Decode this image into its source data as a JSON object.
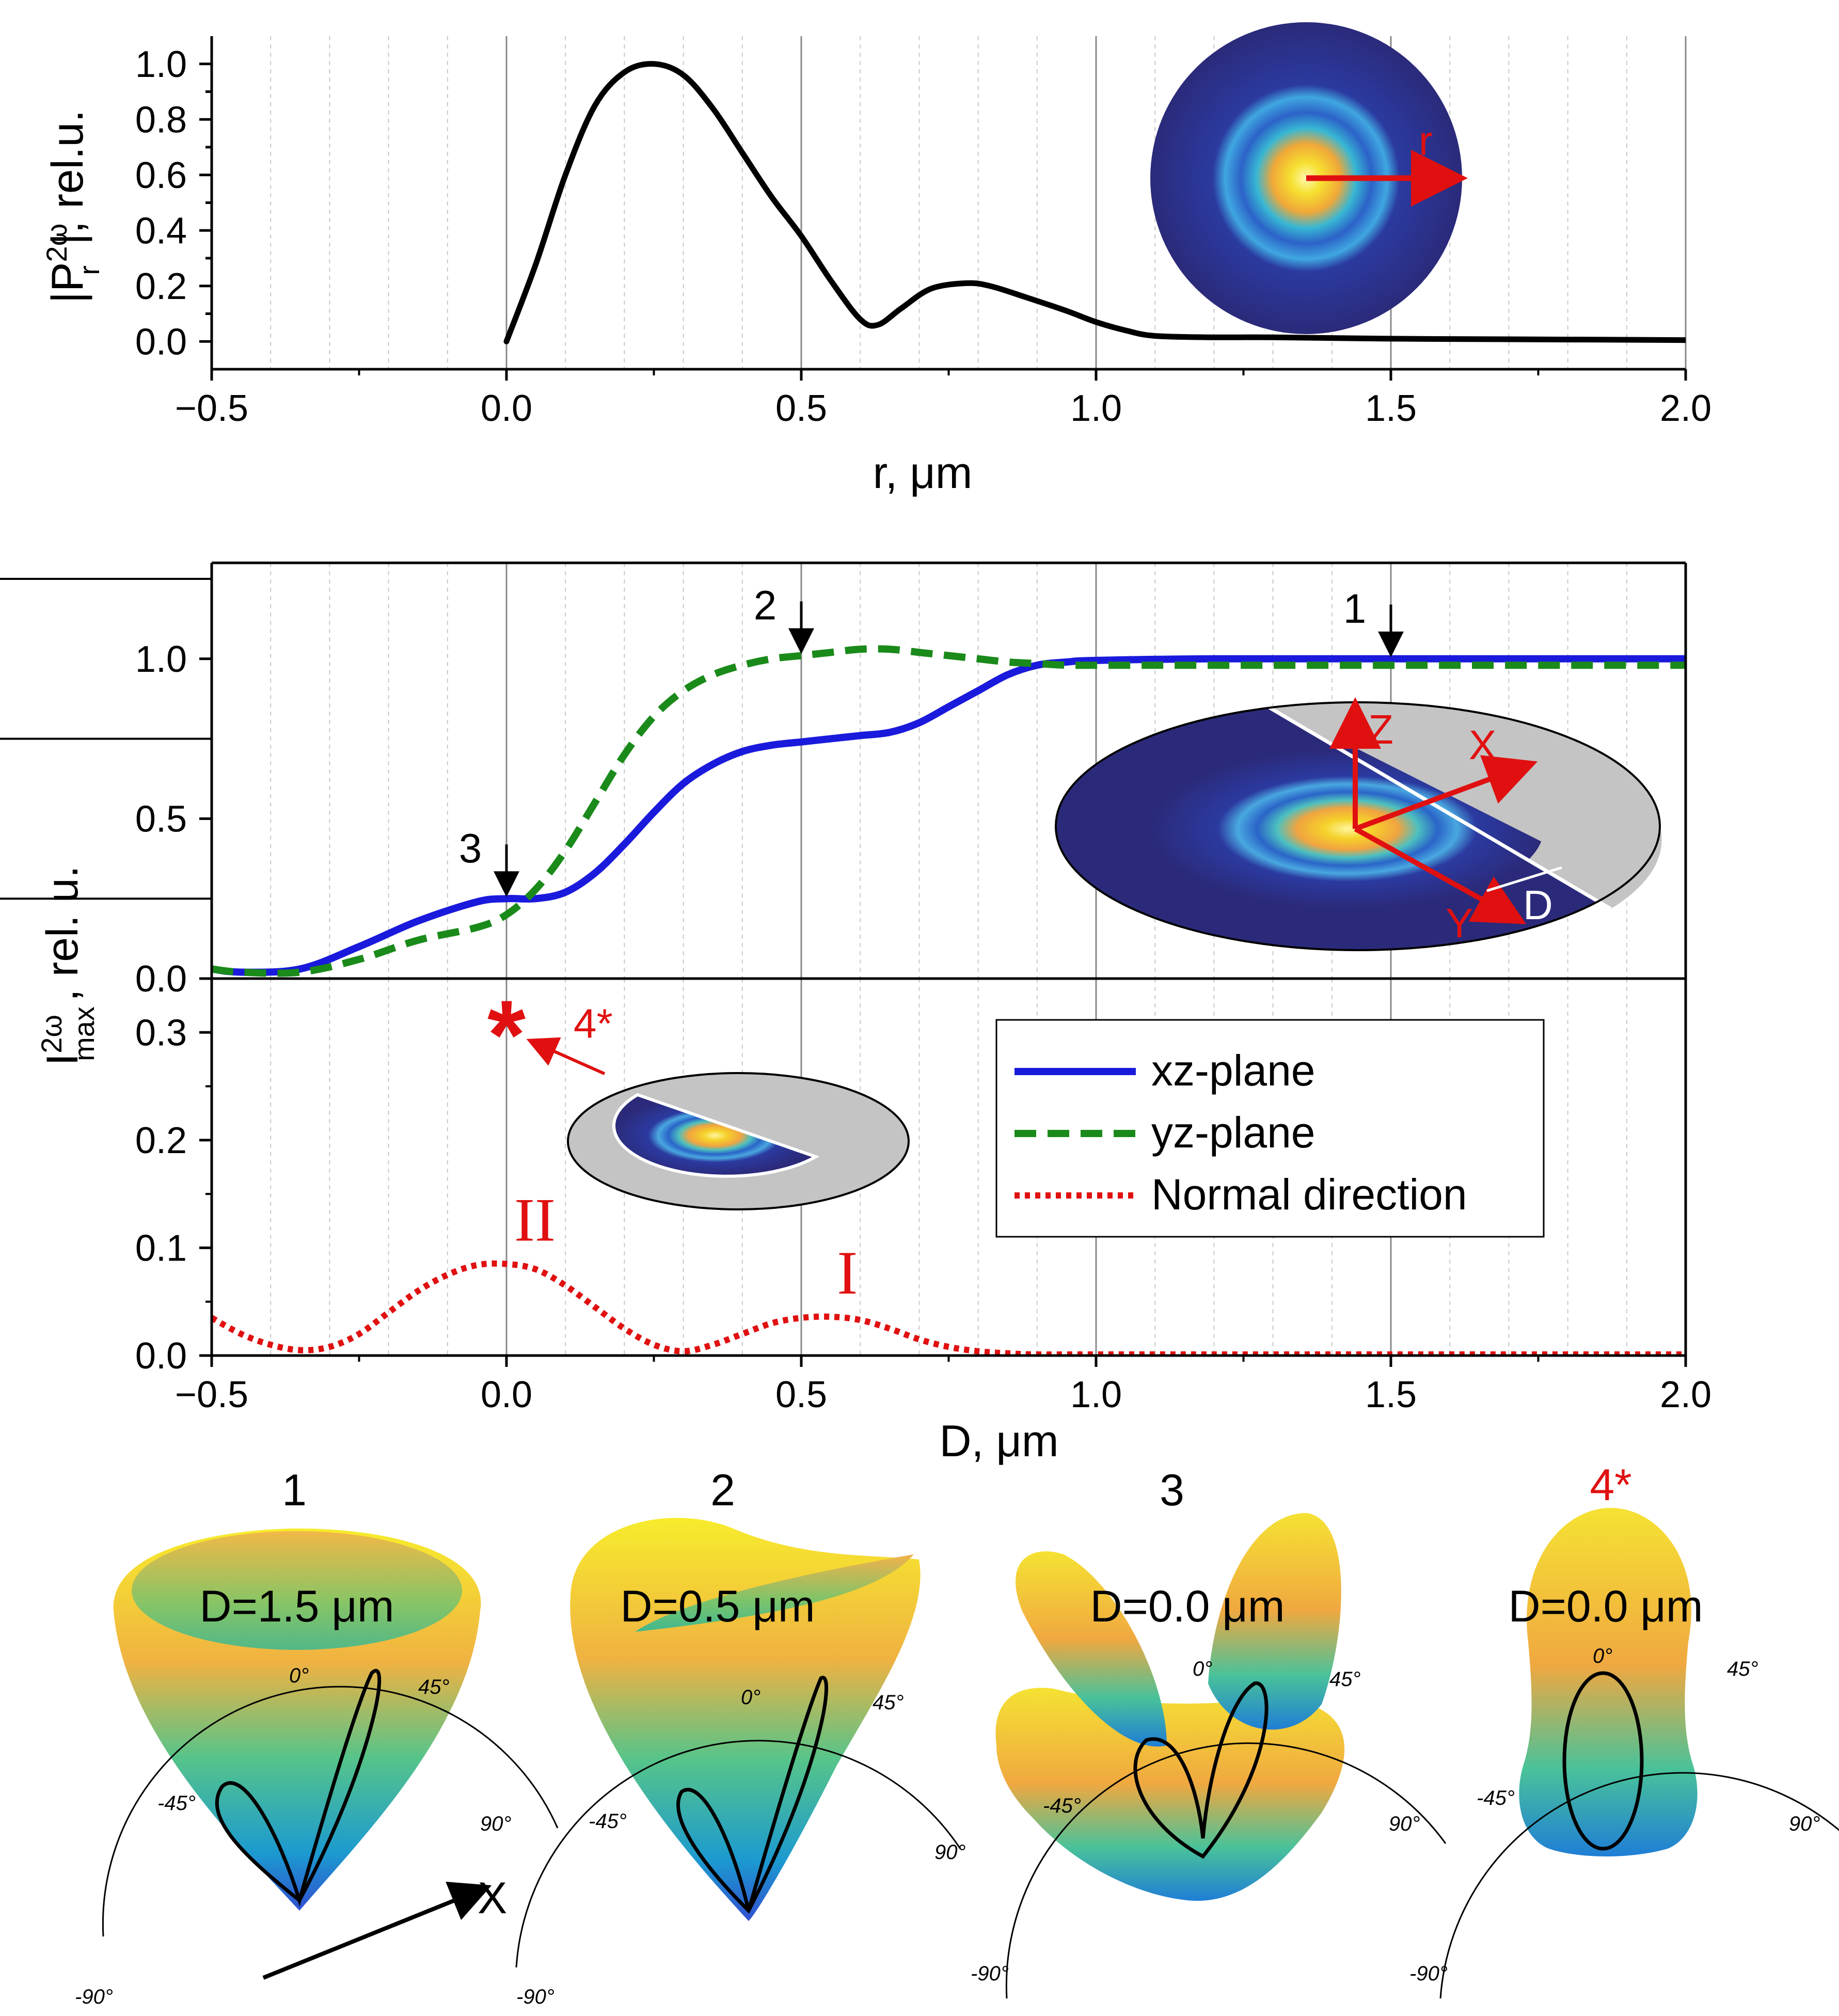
{
  "chart_data": [
    {
      "type": "line",
      "xlabel": "r, μm",
      "ylabel_main": "|P",
      "ylabel_sub": "r",
      "ylabel_sup": "2ω",
      "ylabel_tail": "|, rel.u.",
      "xlim": [
        -0.5,
        2.0
      ],
      "ylim": [
        -0.1,
        1.1
      ],
      "xticks": [
        "−0.5",
        "0.0",
        "0.5",
        "1.0",
        "1.5",
        "2.0"
      ],
      "xtick_values": [
        -0.5,
        0.0,
        0.5,
        1.0,
        1.5,
        2.0
      ],
      "yticks": [
        "0.0",
        "0.2",
        "0.4",
        "0.6",
        "0.8",
        "1.0"
      ],
      "ytick_minor": [
        "0.1",
        "0.3",
        "0.5",
        "0.7",
        "0.9"
      ],
      "ytick_values": [
        0.0,
        0.2,
        0.4,
        0.6,
        0.8,
        1.0
      ],
      "ytick_minor_values": [
        0.1,
        0.3,
        0.5,
        0.7,
        0.9
      ],
      "series": [
        {
          "name": "|P_r^2ω|",
          "color": "#000000",
          "x": [
            0.0,
            0.05,
            0.1,
            0.15,
            0.2,
            0.25,
            0.3,
            0.35,
            0.4,
            0.45,
            0.5,
            0.55,
            0.6,
            0.63,
            0.67,
            0.72,
            0.78,
            0.82,
            0.88,
            0.95,
            1.0,
            1.05,
            1.1,
            1.2,
            1.3,
            1.5,
            1.7,
            2.0
          ],
          "y": [
            0.0,
            0.28,
            0.6,
            0.85,
            0.97,
            1.0,
            0.96,
            0.84,
            0.68,
            0.52,
            0.38,
            0.22,
            0.08,
            0.06,
            0.12,
            0.19,
            0.21,
            0.2,
            0.16,
            0.11,
            0.07,
            0.04,
            0.02,
            0.015,
            0.015,
            0.01,
            0.008,
            0.005
          ]
        }
      ],
      "inset_label": "r"
    },
    {
      "type": "line",
      "xlim": [
        -0.5,
        2.0
      ],
      "ylim": [
        0.0,
        1.3
      ],
      "xticks": [],
      "yticks": [
        "0.0",
        "0.5",
        "1.0"
      ],
      "ytick_values": [
        0.0,
        0.5,
        1.0
      ],
      "series": [
        {
          "name": "xz-plane",
          "color": "#1a1adc",
          "x": [
            -0.5,
            -0.45,
            -0.35,
            -0.25,
            -0.15,
            -0.05,
            0.0,
            0.05,
            0.1,
            0.15,
            0.2,
            0.25,
            0.3,
            0.35,
            0.4,
            0.45,
            0.5,
            0.55,
            0.6,
            0.65,
            0.7,
            0.75,
            0.8,
            0.85,
            0.9,
            0.95,
            1.0,
            1.2,
            1.5,
            2.0
          ],
          "y": [
            0.03,
            0.02,
            0.03,
            0.1,
            0.18,
            0.24,
            0.25,
            0.25,
            0.27,
            0.33,
            0.42,
            0.52,
            0.61,
            0.67,
            0.71,
            0.73,
            0.74,
            0.75,
            0.76,
            0.77,
            0.8,
            0.85,
            0.9,
            0.95,
            0.98,
            0.99,
            0.995,
            1.0,
            1.0,
            1.0
          ]
        },
        {
          "name": "yz-plane",
          "color": "#1a8a1a",
          "x": [
            -0.5,
            -0.45,
            -0.35,
            -0.25,
            -0.15,
            -0.05,
            0.0,
            0.05,
            0.1,
            0.15,
            0.2,
            0.25,
            0.3,
            0.35,
            0.4,
            0.45,
            0.5,
            0.55,
            0.6,
            0.65,
            0.7,
            0.75,
            0.8,
            0.85,
            0.9,
            0.95,
            1.0,
            1.2,
            1.5,
            2.0
          ],
          "y": [
            0.03,
            0.02,
            0.02,
            0.06,
            0.12,
            0.16,
            0.2,
            0.28,
            0.4,
            0.55,
            0.7,
            0.82,
            0.9,
            0.95,
            0.98,
            1.0,
            1.01,
            1.02,
            1.03,
            1.03,
            1.02,
            1.01,
            1.0,
            0.99,
            0.985,
            0.98,
            0.98,
            0.98,
            0.98,
            0.98
          ]
        }
      ],
      "markers": [
        {
          "label": "1",
          "x": 1.5
        },
        {
          "label": "2",
          "x": 0.5
        },
        {
          "label": "3",
          "x": 0.0
        }
      ],
      "inset_axes": [
        "Z",
        "X",
        "Y",
        "D"
      ]
    },
    {
      "type": "line",
      "xlabel": "D, μm",
      "ylabel_main": "I",
      "ylabel_sub": "max",
      "ylabel_sup": "2ω",
      "ylabel_tail": ", rel. u.",
      "xlim": [
        -0.5,
        2.0
      ],
      "ylim": [
        0.0,
        0.35
      ],
      "xticks": [
        "−0.5",
        "0.0",
        "0.5",
        "1.0",
        "1.5",
        "2.0"
      ],
      "xtick_values": [
        -0.5,
        0.0,
        0.5,
        1.0,
        1.5,
        2.0
      ],
      "yticks": [
        "0.0",
        "0.1",
        "0.2",
        "0.3"
      ],
      "ytick_values": [
        0.0,
        0.1,
        0.2,
        0.3
      ],
      "series": [
        {
          "name": "Normal direction",
          "color": "#e01010",
          "x": [
            -0.5,
            -0.45,
            -0.4,
            -0.35,
            -0.3,
            -0.25,
            -0.2,
            -0.15,
            -0.1,
            -0.05,
            0.0,
            0.05,
            0.1,
            0.15,
            0.2,
            0.25,
            0.3,
            0.35,
            0.4,
            0.45,
            0.5,
            0.55,
            0.6,
            0.65,
            0.7,
            0.75,
            0.8,
            0.85,
            0.9,
            1.0,
            1.5,
            2.0
          ],
          "y": [
            0.035,
            0.02,
            0.01,
            0.005,
            0.008,
            0.02,
            0.04,
            0.06,
            0.075,
            0.084,
            0.085,
            0.08,
            0.065,
            0.045,
            0.025,
            0.01,
            0.004,
            0.01,
            0.02,
            0.03,
            0.035,
            0.036,
            0.033,
            0.025,
            0.015,
            0.008,
            0.004,
            0.002,
            0.001,
            0.001,
            0.001,
            0.001
          ]
        }
      ],
      "special_point": {
        "label": "4*",
        "x": 0.0,
        "y": 0.3
      },
      "peak_labels": [
        {
          "label": "II",
          "x": 0.0,
          "y": 0.085
        },
        {
          "label": "I",
          "x": 0.53,
          "y": 0.036
        }
      ]
    }
  ],
  "legend": {
    "items": [
      {
        "label": "xz-plane",
        "color": "#1a1adc",
        "style": "solid"
      },
      {
        "label": "yz-plane",
        "color": "#1a8a1a",
        "style": "dashed"
      },
      {
        "label": "Normal direction",
        "color": "#e01010",
        "style": "dotted"
      }
    ]
  },
  "bottom_panels": [
    {
      "number": "1",
      "d_label": "D=1.5 μm",
      "number_color": "#000000",
      "angles": [
        "0°",
        "45°",
        "90°",
        "-45°",
        "-90°"
      ],
      "x_axis": "X"
    },
    {
      "number": "2",
      "d_label": "D=0.5 μm",
      "number_color": "#000000",
      "angles": [
        "0°",
        "45°",
        "90°",
        "-45°",
        "-90°"
      ]
    },
    {
      "number": "3",
      "d_label": "D=0.0 μm",
      "number_color": "#000000",
      "angles": [
        "0°",
        "45°",
        "90°",
        "-45°",
        "-90°"
      ]
    },
    {
      "number": "4*",
      "d_label": "D=0.0 μm",
      "number_color": "#e01010",
      "angles": [
        "0°",
        "45°",
        "90°",
        "-45°",
        "-90°"
      ]
    }
  ],
  "colors": {
    "dark_navy": "#2b2a7a",
    "gray_disk": "#c0c0c0",
    "red_accent": "#e01010"
  }
}
